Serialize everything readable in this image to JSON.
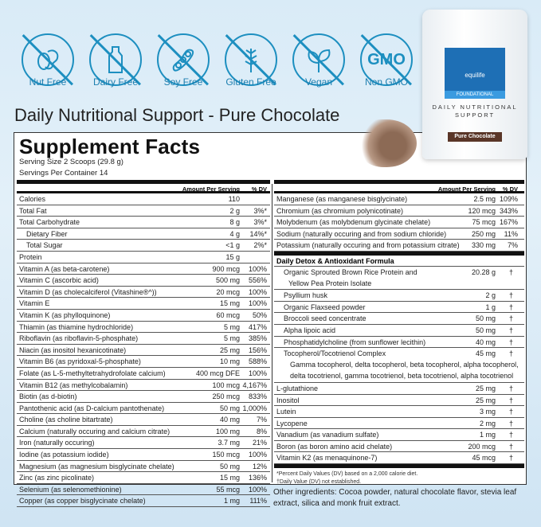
{
  "badges": [
    {
      "label": "Nut Free",
      "icon": "nut-free-icon"
    },
    {
      "label": "Dairy Free",
      "icon": "dairy-free-icon"
    },
    {
      "label": "Soy Free",
      "icon": "soy-free-icon"
    },
    {
      "label": "Gluten Free",
      "icon": "gluten-free-icon"
    },
    {
      "label": "Vegan",
      "icon": "vegan-leaf-icon"
    },
    {
      "label": "Non GMO",
      "icon": "non-gmo-icon",
      "text": "GMO"
    }
  ],
  "title": "Daily Nutritional Support - Pure Chocolate",
  "product": {
    "brand": "equilife",
    "line": "FOUNDATIONAL",
    "name": "DAILY NUTRITIONAL SUPPORT",
    "flavor": "Pure Chocolate"
  },
  "facts": {
    "heading": "Supplement Facts",
    "serving_size": "Serving Size 2 Scoops (29.8 g)",
    "servings": "Servings Per Container 14",
    "amount_header": "Amount Per Serving",
    "dv_header": "% DV",
    "left": [
      {
        "n": "Calories",
        "a": "110",
        "d": ""
      },
      {
        "n": "Total Fat",
        "a": "2 g",
        "d": "3%*"
      },
      {
        "n": "Total Carbohydrate",
        "a": "8 g",
        "d": "3%*"
      },
      {
        "n": "Dietary Fiber",
        "a": "4 g",
        "d": "14%*",
        "indent": true
      },
      {
        "n": "Total Sugar",
        "a": "<1 g",
        "d": "2%*",
        "indent": true
      },
      {
        "n": "Protein",
        "a": "15 g",
        "d": ""
      },
      {
        "n": "Vitamin A (as beta-carotene)",
        "a": "900 mcg",
        "d": "100%"
      },
      {
        "n": "Vitamin C (ascorbic acid)",
        "a": "500 mg",
        "d": "556%"
      },
      {
        "n": "Vitamin D (as cholecalciferol (Vitashine®^))",
        "a": "20 mcg",
        "d": "100%"
      },
      {
        "n": "Vitamin E",
        "a": "15 mg",
        "d": "100%"
      },
      {
        "n": "Vitamin K (as phylloquinone)",
        "a": "60 mcg",
        "d": "50%"
      },
      {
        "n": "Thiamin (as thiamine hydrochloride)",
        "a": "5 mg",
        "d": "417%"
      },
      {
        "n": "Riboflavin (as riboflavin-5-phosphate)",
        "a": "5 mg",
        "d": "385%"
      },
      {
        "n": "Niacin (as inositol hexanicotinate)",
        "a": "25 mg",
        "d": "156%"
      },
      {
        "n": "Vitamin B6 (as pyridoxal-5-phosphate)",
        "a": "10 mg",
        "d": "588%"
      },
      {
        "n": "Folate (as L-5-methyltetrahydrofolate calcium)",
        "a": "400 mcg DFE",
        "d": "100%"
      },
      {
        "n": "Vitamin B12 (as methylcobalamin)",
        "a": "100 mcg",
        "d": "4,167%"
      },
      {
        "n": "Biotin (as d-biotin)",
        "a": "250 mcg",
        "d": "833%"
      },
      {
        "n": "Pantothenic acid (as D-calcium pantothenate)",
        "a": "50 mg",
        "d": "1,000%"
      },
      {
        "n": "Choline (as choline bitartrate)",
        "a": "40 mg",
        "d": "7%"
      },
      {
        "n": "Calcium (naturally occuring and calcium citrate)",
        "a": "100 mg",
        "d": "8%"
      },
      {
        "n": "Iron (naturally occuring)",
        "a": "3.7 mg",
        "d": "21%"
      },
      {
        "n": "Iodine (as potassium iodide)",
        "a": "150 mcg",
        "d": "100%"
      },
      {
        "n": "Magnesium (as magnesium bisglycinate chelate)",
        "a": "50 mg",
        "d": "12%"
      },
      {
        "n": "Zinc (as zinc picolinate)",
        "a": "15 mg",
        "d": "136%"
      },
      {
        "n": "Selenium (as selenomethionine)",
        "a": "55 mcg",
        "d": "100%"
      },
      {
        "n": "Copper (as copper bisglycinate chelate)",
        "a": "1 mg",
        "d": "111%"
      }
    ],
    "right": [
      {
        "n": "Manganese (as manganese bisglycinate)",
        "a": "2.5 mg",
        "d": "109%"
      },
      {
        "n": "Chromium (as chromium polynicotinate)",
        "a": "120 mcg",
        "d": "343%"
      },
      {
        "n": "Molybdenum (as molybdenum glycinate chelate)",
        "a": "75 mcg",
        "d": "167%"
      },
      {
        "n": "Sodium (naturally occuring and from sodium chloride)",
        "a": "250 mg",
        "d": "11%"
      },
      {
        "n": "Potassium (naturally occuring and from potassium citrate)",
        "a": "330 mg",
        "d": "7%"
      }
    ],
    "blend_title": "Daily Detox & Antioxidant Formula",
    "blend": [
      {
        "n": "Organic Sprouted Brown Rice Protein and",
        "n2": "Yellow Pea Protein Isolate",
        "a": "20.28 g",
        "d": "†"
      },
      {
        "n": "Psyllium husk",
        "a": "2 g",
        "d": "†"
      },
      {
        "n": "Organic Flaxseed powder",
        "a": "1 g",
        "d": "†"
      },
      {
        "n": "Broccoli seed concentrate",
        "a": "50 mg",
        "d": "†"
      },
      {
        "n": "Alpha lipoic acid",
        "a": "50 mg",
        "d": "†"
      },
      {
        "n": "Phosphatidylcholine (from sunflower lecithin)",
        "a": "40 mg",
        "d": "†"
      },
      {
        "n": "Tocopherol/Tocotrienol Complex",
        "n2": "Gamma tocopherol, delta tocopherol, beta tocopherol, alpha tocopherol,",
        "n3": "delta tocotrienol, gamma tocotrienol, beta tocotrienol, alpha tocotrienol",
        "a": "45 mg",
        "d": "†"
      }
    ],
    "right2": [
      {
        "n": "L-glutathione",
        "a": "25 mg",
        "d": "†"
      },
      {
        "n": "Inositol",
        "a": "25 mg",
        "d": "†"
      },
      {
        "n": "Lutein",
        "a": "3 mg",
        "d": "†"
      },
      {
        "n": "Lycopene",
        "a": "2 mg",
        "d": "†"
      },
      {
        "n": "Vanadium (as vanadium sulfate)",
        "a": "1 mg",
        "d": "†"
      },
      {
        "n": "Boron (as boron amino acid chelate)",
        "a": "200 mcg",
        "d": "†"
      },
      {
        "n": "Vitamin K2 (as menaquinone-7)",
        "a": "45 mcg",
        "d": "†"
      }
    ],
    "footnote1": "*Percent Daily Values (DV) based on a 2,000 calorie diet.",
    "footnote2": "†Daily Value (DV) not established."
  },
  "other_ingredients": "Other ingredients: Cocoa powder, natural chocolate flavor, stevia leaf extract, silica and monk fruit extract.",
  "colors": {
    "accent": "#1d8fc0",
    "brand": "#1e6fb5",
    "flavor": "#5a3628"
  }
}
